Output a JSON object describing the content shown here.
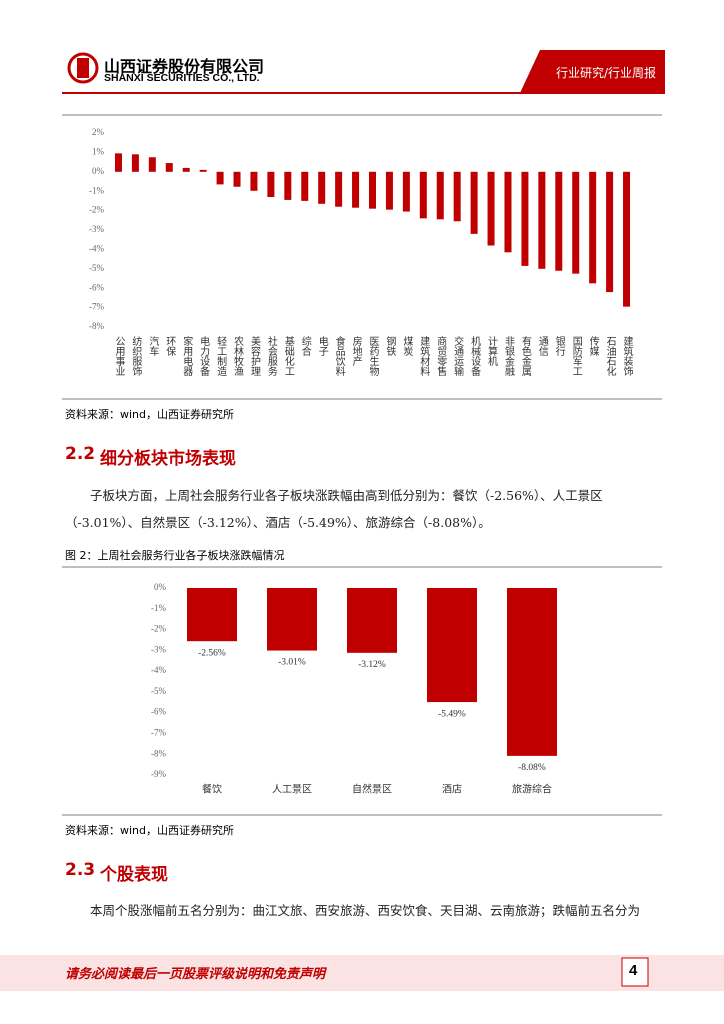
{
  "header": {
    "company": "山西证券股份有限公司",
    "company_en": "SHANXI SECURITIES CO., LTD.",
    "category": "行业研究/行业周报"
  },
  "chart_data": [
    {
      "type": "bar",
      "color": "#c00000",
      "grid": false,
      "categories": [
        "公用事业",
        "纺织服饰",
        "汽车",
        "环保",
        "家用电器",
        "电力设备",
        "轻工制造",
        "农林牧渔",
        "美容护理",
        "社会服务",
        "基础化工",
        "综合",
        "电子",
        "食品饮料",
        "房地产",
        "医药生物",
        "钢铁",
        "煤炭",
        "建筑材料",
        "商贸零售",
        "交通运输",
        "机械设备",
        "计算机",
        "非银金融",
        "有色金属",
        "通信",
        "银行",
        "国防军工",
        "传媒",
        "石油石化",
        "建筑装饰"
      ],
      "values": [
        0.95,
        0.9,
        0.75,
        0.45,
        0.2,
        0.1,
        -0.65,
        -0.77,
        -0.98,
        -1.3,
        -1.45,
        -1.5,
        -1.65,
        -1.8,
        -1.85,
        -1.9,
        -1.95,
        -2.05,
        -2.4,
        -2.45,
        -2.55,
        -3.2,
        -3.8,
        -4.15,
        -4.85,
        -5.0,
        -5.1,
        -5.25,
        -5.75,
        -6.2,
        -6.95
      ],
      "ylim": [
        -8,
        2
      ],
      "yticks": [
        {
          "value": 2,
          "label": "2%"
        },
        {
          "value": 1,
          "label": "1%"
        },
        {
          "value": 0,
          "label": "0%"
        },
        {
          "value": -1,
          "label": "-1%"
        },
        {
          "value": -2,
          "label": "-2%"
        },
        {
          "value": -3,
          "label": "-3%"
        },
        {
          "value": -4,
          "label": "-4%"
        },
        {
          "value": -5,
          "label": "-5%"
        },
        {
          "value": -6,
          "label": "-6%"
        },
        {
          "value": -7,
          "label": "-7%"
        },
        {
          "value": -8,
          "label": "-8%"
        }
      ],
      "source": "资料来源：wind，山西证券研究所"
    },
    {
      "type": "bar",
      "color": "#c00000",
      "grid": false,
      "title": "图 2：上周社会服务行业各子板块涨跌幅情况",
      "categories": [
        "餐饮",
        "人工景区",
        "自然景区",
        "酒店",
        "旅游综合"
      ],
      "values": [
        -2.56,
        -3.01,
        -3.12,
        -5.49,
        -8.08
      ],
      "value_labels": [
        "-2.56%",
        "-3.01%",
        "-3.12%",
        "-5.49%",
        "-8.08%"
      ],
      "ylim": [
        -9,
        0
      ],
      "yticks": [
        {
          "value": 0,
          "label": "0%"
        },
        {
          "value": -1,
          "label": "-1%"
        },
        {
          "value": -2,
          "label": "-2%"
        },
        {
          "value": -3,
          "label": "-3%"
        },
        {
          "value": -4,
          "label": "-4%"
        },
        {
          "value": -5,
          "label": "-5%"
        },
        {
          "value": -6,
          "label": "-6%"
        },
        {
          "value": -7,
          "label": "-7%"
        },
        {
          "value": -8,
          "label": "-8%"
        },
        {
          "value": -9,
          "label": "-9%"
        }
      ],
      "source": "资料来源：wind，山西证券研究所"
    }
  ],
  "sections": [
    {
      "number": "2.2",
      "title": "细分板块市场表现",
      "paragraph": "子板块方面，上周社会服务行业各子板块涨跌幅由高到低分别为：餐饮（-2.56%）、人工景区（-3.01%）、自然景区（-3.12%）、酒店（-5.49%）、旅游综合（-8.08%）。"
    },
    {
      "number": "2.3",
      "title": "个股表现",
      "paragraph": "本周个股涨幅前五名分别为：曲江文旅、西安旅游、西安饮食、天目湖、云南旅游；跌幅前五名分为"
    }
  ],
  "footer": {
    "disclaimer": "请务必阅读最后一页股票评级说明和免责声明",
    "page": "4"
  }
}
